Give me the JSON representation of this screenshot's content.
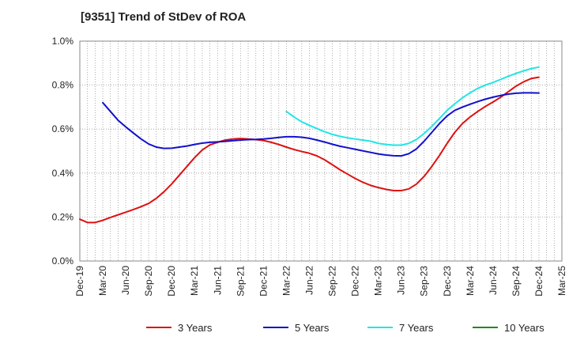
{
  "title": "[9351]  Trend of StDev of ROA",
  "chart_data": {
    "type": "line",
    "title": "[9351]  Trend of StDev of ROA",
    "xlabel": "",
    "ylabel": "",
    "x_ticks": [
      "Dec-19",
      "Mar-20",
      "Jun-20",
      "Sep-20",
      "Dec-20",
      "Mar-21",
      "Jun-21",
      "Sep-21",
      "Dec-21",
      "Mar-22",
      "Jun-22",
      "Sep-22",
      "Dec-22",
      "Mar-23",
      "Jun-23",
      "Sep-23",
      "Dec-23",
      "Mar-24",
      "Jun-24",
      "Sep-24",
      "Dec-24",
      "Mar-25"
    ],
    "y_ticks": [
      "0.0%",
      "0.2%",
      "0.4%",
      "0.6%",
      "0.8%",
      "1.0%"
    ],
    "ylim": [
      0,
      1.0
    ],
    "grid": true,
    "legend_position": "bottom",
    "series": [
      {
        "name": "3 Years",
        "color": "#dd1111",
        "points": [
          [
            "Dec-19",
            0.19
          ],
          [
            "Jan-20",
            0.175
          ],
          [
            "Feb-20",
            0.175
          ],
          [
            "Mar-20",
            0.185
          ],
          [
            "Apr-20",
            0.198
          ],
          [
            "May-20",
            0.21
          ],
          [
            "Jun-20",
            0.222
          ],
          [
            "Jul-20",
            0.234
          ],
          [
            "Aug-20",
            0.247
          ],
          [
            "Sep-20",
            0.262
          ],
          [
            "Oct-20",
            0.285
          ],
          [
            "Nov-20",
            0.315
          ],
          [
            "Dec-20",
            0.35
          ],
          [
            "Jan-21",
            0.39
          ],
          [
            "Feb-21",
            0.43
          ],
          [
            "Mar-21",
            0.47
          ],
          [
            "Apr-21",
            0.505
          ],
          [
            "May-21",
            0.528
          ],
          [
            "Jun-21",
            0.54
          ],
          [
            "Jul-21",
            0.55
          ],
          [
            "Aug-21",
            0.555
          ],
          [
            "Sep-21",
            0.557
          ],
          [
            "Oct-21",
            0.555
          ],
          [
            "Nov-21",
            0.552
          ],
          [
            "Dec-21",
            0.548
          ],
          [
            "Jan-22",
            0.54
          ],
          [
            "Feb-22",
            0.53
          ],
          [
            "Mar-22",
            0.518
          ],
          [
            "Apr-22",
            0.507
          ],
          [
            "May-22",
            0.498
          ],
          [
            "Jun-22",
            0.49
          ],
          [
            "Jul-22",
            0.478
          ],
          [
            "Aug-22",
            0.46
          ],
          [
            "Sep-22",
            0.438
          ],
          [
            "Oct-22",
            0.415
          ],
          [
            "Nov-22",
            0.395
          ],
          [
            "Dec-22",
            0.375
          ],
          [
            "Jan-23",
            0.358
          ],
          [
            "Feb-23",
            0.344
          ],
          [
            "Mar-23",
            0.334
          ],
          [
            "Apr-23",
            0.326
          ],
          [
            "May-23",
            0.32
          ],
          [
            "Jun-23",
            0.32
          ],
          [
            "Jul-23",
            0.328
          ],
          [
            "Aug-23",
            0.35
          ],
          [
            "Sep-23",
            0.385
          ],
          [
            "Oct-23",
            0.43
          ],
          [
            "Nov-23",
            0.48
          ],
          [
            "Dec-23",
            0.535
          ],
          [
            "Jan-24",
            0.585
          ],
          [
            "Feb-24",
            0.625
          ],
          [
            "Mar-24",
            0.655
          ],
          [
            "Apr-24",
            0.68
          ],
          [
            "May-24",
            0.703
          ],
          [
            "Jun-24",
            0.723
          ],
          [
            "Jul-24",
            0.745
          ],
          [
            "Aug-24",
            0.77
          ],
          [
            "Sep-24",
            0.795
          ],
          [
            "Oct-24",
            0.815
          ],
          [
            "Nov-24",
            0.83
          ],
          [
            "Dec-24",
            0.836
          ]
        ]
      },
      {
        "name": "5 Years",
        "color": "#1111cc",
        "points": [
          [
            "Mar-20",
            0.72
          ],
          [
            "Apr-20",
            0.68
          ],
          [
            "May-20",
            0.64
          ],
          [
            "Jun-20",
            0.61
          ],
          [
            "Jul-20",
            0.582
          ],
          [
            "Aug-20",
            0.555
          ],
          [
            "Sep-20",
            0.532
          ],
          [
            "Oct-20",
            0.518
          ],
          [
            "Nov-20",
            0.512
          ],
          [
            "Dec-20",
            0.513
          ],
          [
            "Jan-21",
            0.518
          ],
          [
            "Feb-21",
            0.523
          ],
          [
            "Mar-21",
            0.53
          ],
          [
            "Apr-21",
            0.536
          ],
          [
            "May-21",
            0.54
          ],
          [
            "Jun-21",
            0.542
          ],
          [
            "Jul-21",
            0.544
          ],
          [
            "Aug-21",
            0.547
          ],
          [
            "Sep-21",
            0.55
          ],
          [
            "Oct-21",
            0.552
          ],
          [
            "Nov-21",
            0.553
          ],
          [
            "Dec-21",
            0.555
          ],
          [
            "Jan-22",
            0.558
          ],
          [
            "Feb-22",
            0.562
          ],
          [
            "Mar-22",
            0.565
          ],
          [
            "Apr-22",
            0.565
          ],
          [
            "May-22",
            0.563
          ],
          [
            "Jun-22",
            0.558
          ],
          [
            "Jul-22",
            0.55
          ],
          [
            "Aug-22",
            0.541
          ],
          [
            "Sep-22",
            0.531
          ],
          [
            "Oct-22",
            0.522
          ],
          [
            "Nov-22",
            0.515
          ],
          [
            "Dec-22",
            0.508
          ],
          [
            "Jan-23",
            0.501
          ],
          [
            "Feb-23",
            0.494
          ],
          [
            "Mar-23",
            0.487
          ],
          [
            "Apr-23",
            0.482
          ],
          [
            "May-23",
            0.479
          ],
          [
            "Jun-23",
            0.478
          ],
          [
            "Jul-23",
            0.488
          ],
          [
            "Aug-23",
            0.51
          ],
          [
            "Sep-23",
            0.545
          ],
          [
            "Oct-23",
            0.585
          ],
          [
            "Nov-23",
            0.625
          ],
          [
            "Dec-23",
            0.66
          ],
          [
            "Jan-24",
            0.685
          ],
          [
            "Feb-24",
            0.7
          ],
          [
            "Mar-24",
            0.713
          ],
          [
            "Apr-24",
            0.725
          ],
          [
            "May-24",
            0.736
          ],
          [
            "Jun-24",
            0.745
          ],
          [
            "Jul-24",
            0.753
          ],
          [
            "Aug-24",
            0.759
          ],
          [
            "Sep-24",
            0.763
          ],
          [
            "Oct-24",
            0.765
          ],
          [
            "Nov-24",
            0.765
          ],
          [
            "Dec-24",
            0.764
          ]
        ]
      },
      {
        "name": "7 Years",
        "color": "#22e5e5",
        "points": [
          [
            "Mar-22",
            0.68
          ],
          [
            "Apr-22",
            0.655
          ],
          [
            "May-22",
            0.633
          ],
          [
            "Jun-22",
            0.617
          ],
          [
            "Jul-22",
            0.602
          ],
          [
            "Aug-22",
            0.588
          ],
          [
            "Sep-22",
            0.576
          ],
          [
            "Oct-22",
            0.567
          ],
          [
            "Nov-22",
            0.56
          ],
          [
            "Dec-22",
            0.555
          ],
          [
            "Jan-23",
            0.55
          ],
          [
            "Feb-23",
            0.545
          ],
          [
            "Mar-23",
            0.535
          ],
          [
            "Apr-23",
            0.53
          ],
          [
            "May-23",
            0.527
          ],
          [
            "Jun-23",
            0.527
          ],
          [
            "Jul-23",
            0.535
          ],
          [
            "Aug-23",
            0.553
          ],
          [
            "Sep-23",
            0.58
          ],
          [
            "Oct-23",
            0.612
          ],
          [
            "Nov-23",
            0.648
          ],
          [
            "Dec-23",
            0.685
          ],
          [
            "Jan-24",
            0.715
          ],
          [
            "Feb-24",
            0.742
          ],
          [
            "Mar-24",
            0.765
          ],
          [
            "Apr-24",
            0.785
          ],
          [
            "May-24",
            0.8
          ],
          [
            "Jun-24",
            0.812
          ],
          [
            "Jul-24",
            0.826
          ],
          [
            "Aug-24",
            0.84
          ],
          [
            "Sep-24",
            0.853
          ],
          [
            "Oct-24",
            0.865
          ],
          [
            "Nov-24",
            0.875
          ],
          [
            "Dec-24",
            0.882
          ]
        ]
      },
      {
        "name": "10 Years",
        "color": "#228822",
        "points": []
      }
    ]
  }
}
